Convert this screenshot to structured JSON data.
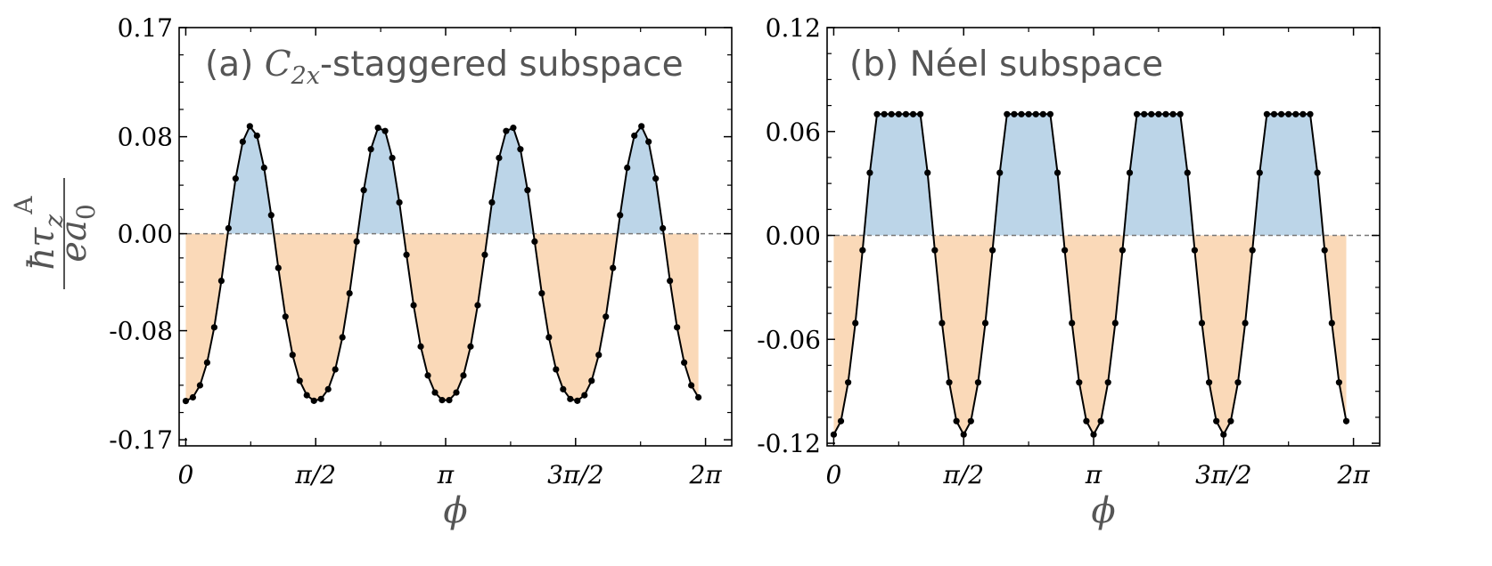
{
  "ylabel": {
    "numerator": "ħτ",
    "sub": "z",
    "sup": "A",
    "denominator": "ea",
    "den_sub": "0"
  },
  "chart_data": [
    {
      "type": "line",
      "title_prefix": "(a) ",
      "title_math": "C",
      "title_math_sub": "2x",
      "title_suffix": "-staggered subspace",
      "xlabel": "ϕ",
      "xlim": [
        -0.08,
        6.6
      ],
      "ylim": [
        -0.175,
        0.17
      ],
      "xticks": [
        {
          "value": 0,
          "label": "0"
        },
        {
          "value": 1.5708,
          "label": "π/2"
        },
        {
          "value": 3.1416,
          "label": "π"
        },
        {
          "value": 4.7124,
          "label": "3π/2"
        },
        {
          "value": 6.2832,
          "label": "2π"
        }
      ],
      "yticks": [
        {
          "value": 0.17,
          "label": "0.17"
        },
        {
          "value": 0.08,
          "label": "0.08"
        },
        {
          "value": 0.0,
          "label": "0.00"
        },
        {
          "value": -0.08,
          "label": "-0.08"
        },
        {
          "value": -0.17,
          "label": "-0.17"
        }
      ],
      "n_points": 73,
      "curve": {
        "form": "C + A*cos(4*phi) + B*cos(8*phi)",
        "C": -0.0406,
        "A": -0.1134,
        "B": 0.016
      },
      "fill_positive_color": "#bcd5e8",
      "fill_negative_color": "#fad9b8",
      "line_color": "#000000"
    },
    {
      "type": "line",
      "title_prefix": "(b) Néel subspace",
      "title_math": "",
      "title_math_sub": "",
      "title_suffix": "",
      "xlabel": "ϕ",
      "xlim": [
        -0.08,
        6.6
      ],
      "ylim": [
        -0.1215,
        0.12
      ],
      "xticks": [
        {
          "value": 0,
          "label": "0"
        },
        {
          "value": 1.5708,
          "label": "π/2"
        },
        {
          "value": 3.1416,
          "label": "π"
        },
        {
          "value": 4.7124,
          "label": "3π/2"
        },
        {
          "value": 6.2832,
          "label": "2π"
        }
      ],
      "yticks": [
        {
          "value": 0.12,
          "label": "0.12"
        },
        {
          "value": 0.06,
          "label": "0.06"
        },
        {
          "value": 0.0,
          "label": "0.00"
        },
        {
          "value": -0.06,
          "label": "-0.06"
        },
        {
          "value": -0.12,
          "label": "-0.12"
        }
      ],
      "n_points": 72,
      "curve": {
        "form": "clip(C - A*cos(4*phi), max)",
        "C": 0.0138,
        "A": 0.1288,
        "max": 0.07
      },
      "fill_positive_color": "#bcd5e8",
      "fill_negative_color": "#fad9b8",
      "line_color": "#000000"
    }
  ]
}
